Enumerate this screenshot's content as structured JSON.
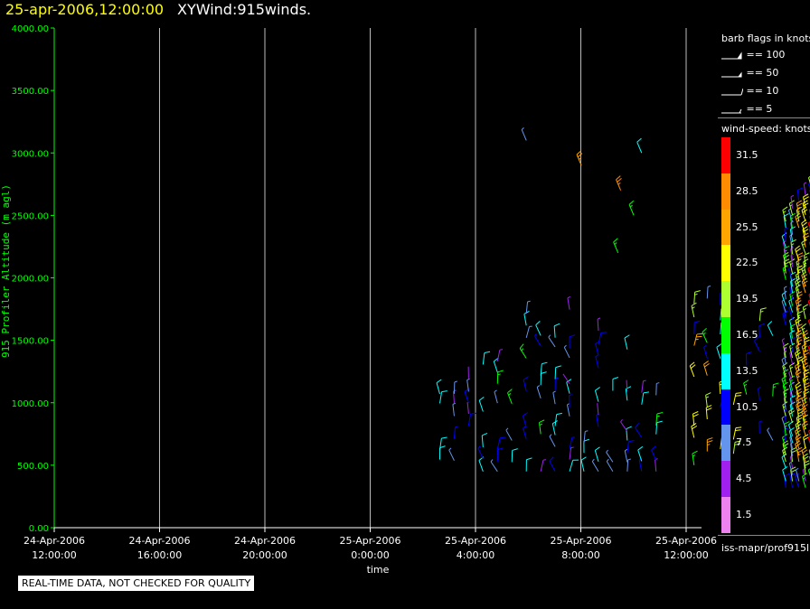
{
  "header": {
    "date_label": "25-apr-2006,12:00:00",
    "product_label": "XYWind:915winds."
  },
  "quality_notice": "REAL-TIME DATA, NOT CHECKED FOR QUALITY",
  "source_label": "iss-mapr/prof915l",
  "legend": {
    "barb_title": "barb flags in knots",
    "barb_flags": [
      {
        "label": "== 100",
        "flag": "pennant"
      },
      {
        "label": "== 50",
        "flag": "pennant-small"
      },
      {
        "label": "== 10",
        "flag": "full"
      },
      {
        "label": "== 5",
        "flag": "half"
      }
    ],
    "speed_title": "wind-speed: knots",
    "speed_classes": [
      {
        "label": "31.5",
        "color": "#ff0000"
      },
      {
        "label": "28.5",
        "color": "#ff8c00"
      },
      {
        "label": "25.5",
        "color": "#ffa500"
      },
      {
        "label": "22.5",
        "color": "#ffff00"
      },
      {
        "label": "19.5",
        "color": "#adff2f"
      },
      {
        "label": "16.5",
        "color": "#00ff00"
      },
      {
        "label": "13.5",
        "color": "#00ffff"
      },
      {
        "label": "10.5",
        "color": "#0000ff"
      },
      {
        "label": "7.5",
        "color": "#6495ed"
      },
      {
        "label": "4.5",
        "color": "#a020f0"
      },
      {
        "label": "1.5",
        "color": "#ee82ee"
      }
    ]
  },
  "chart_data": {
    "type": "scatter",
    "title": "XYWind:915winds.",
    "xlabel": "time",
    "ylabel": "915 Profiler Altitude (m agl)",
    "ylim": [
      0,
      4000
    ],
    "xlim": [
      "24-Apr-2006 12:00:00",
      "25-Apr-2006 12:15:00"
    ],
    "grid": "vertical",
    "y_ticks": [
      "0.00",
      "500.00",
      "1000.00",
      "1500.00",
      "2000.00",
      "2500.00",
      "3000.00",
      "3500.00",
      "4000.00"
    ],
    "x_ticks": [
      {
        "date": "24-Apr-2006",
        "time": "12:00:00"
      },
      {
        "date": "24-Apr-2006",
        "time": "16:00:00"
      },
      {
        "date": "24-Apr-2006",
        "time": "20:00:00"
      },
      {
        "date": "25-Apr-2006",
        "time": "0:00:00"
      },
      {
        "date": "25-Apr-2006",
        "time": "4:00:00"
      },
      {
        "date": "25-Apr-2006",
        "time": "8:00:00"
      },
      {
        "date": "25-Apr-2006",
        "time": "12:00:00"
      }
    ],
    "series": [
      {
        "name": "wind barbs",
        "period_h": [
          14.5,
          32.3
        ],
        "altitude_m": [
          300,
          3600
        ],
        "speed_knots": [
          1.5,
          31.5
        ]
      }
    ],
    "annotations": []
  }
}
